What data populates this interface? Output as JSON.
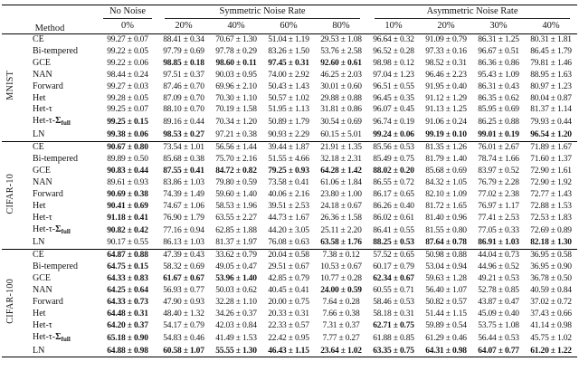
{
  "table": {
    "method_header": "Method",
    "groups": [
      {
        "label": "No Noise",
        "span": 1
      },
      {
        "label": "Symmetric Noise Rate",
        "span": 4
      },
      {
        "label": "Asymmetric Noise Rate",
        "span": 4
      }
    ],
    "rates": [
      "0%",
      "20%",
      "40%",
      "60%",
      "80%",
      "10%",
      "20%",
      "30%",
      "40%"
    ],
    "blocks": [
      {
        "dataset": "MNIST",
        "rows": [
          {
            "method": "CE",
            "values": [
              "99.27 ± 0.07",
              "88.41 ± 0.34",
              "70.67 ± 1.30",
              "51.04 ± 1.19",
              "29.53 ± 1.08",
              "96.64 ± 0.32",
              "91.09 ± 0.79",
              "86.31 ± 1.25",
              "80.31 ± 1.81"
            ],
            "bold": [
              0,
              0,
              0,
              0,
              0,
              0,
              0,
              0,
              0
            ]
          },
          {
            "method": "Bi-tempered",
            "values": [
              "99.22 ± 0.05",
              "97.79 ± 0.69",
              "97.78 ± 0.29",
              "83.26 ± 1.50",
              "53.76 ± 2.58",
              "96.52 ± 0.28",
              "97.33 ± 0.16",
              "96.67 ± 0.51",
              "86.45 ± 1.79"
            ],
            "bold": [
              0,
              0,
              0,
              0,
              0,
              0,
              0,
              0,
              0
            ]
          },
          {
            "method": "GCE",
            "values": [
              "99.22 ± 0.06",
              "98.85 ± 0.18",
              "98.60 ± 0.11",
              "97.45 ± 0.31",
              "92.60 ± 0.61",
              "98.98 ± 0.12",
              "98.52 ± 0.31",
              "86.36 ± 0.86",
              "79.81 ± 1.46"
            ],
            "bold": [
              0,
              1,
              1,
              1,
              1,
              0,
              0,
              0,
              0
            ]
          },
          {
            "method": "NAN",
            "values": [
              "98.44 ± 0.24",
              "97.51 ± 0.37",
              "90.03 ± 0.95",
              "74.00 ± 2.92",
              "46.25 ± 2.03",
              "97.04 ± 1.23",
              "96.46 ± 2.23",
              "95.43 ± 1.09",
              "88.95 ± 1.63"
            ],
            "bold": [
              0,
              0,
              0,
              0,
              0,
              0,
              0,
              0,
              0
            ]
          },
          {
            "method": "Forward",
            "values": [
              "99.27 ± 0.03",
              "87.46 ± 0.70",
              "69.96 ± 2.10",
              "50.43 ± 1.43",
              "30.01 ± 0.60",
              "96.51 ± 0.55",
              "91.95 ± 0.40",
              "86.31 ± 0.43",
              "80.97 ± 1.23"
            ],
            "bold": [
              0,
              0,
              0,
              0,
              0,
              0,
              0,
              0,
              0
            ]
          },
          {
            "method": "Het",
            "values": [
              "99.28 ± 0.05",
              "87.09 ± 0.70",
              "70.30 ± 1.10",
              "50.57 ± 1.02",
              "29.88 ± 0.88",
              "96.45 ± 0.35",
              "91.12 ± 1.29",
              "86.35 ± 0.62",
              "80.04 ± 0.87"
            ],
            "bold": [
              0,
              0,
              0,
              0,
              0,
              0,
              0,
              0,
              0
            ]
          },
          {
            "method": "Het-τ",
            "values": [
              "99.25 ± 0.07",
              "88.10 ± 0.70",
              "70.19 ± 1.58",
              "51.95 ± 1.13",
              "31.81 ± 0.86",
              "96.07 ± 0.45",
              "91.13 ± 1.25",
              "85.95 ± 0.69",
              "81.37 ± 1.14"
            ],
            "bold": [
              0,
              0,
              0,
              0,
              0,
              0,
              0,
              0,
              0
            ]
          },
          {
            "method": "Het-τ-Σ",
            "method_sub": "full",
            "values": [
              "99.25 ± 0.15",
              "89.16 ± 0.44",
              "70.34 ± 1.20",
              "50.89 ± 1.79",
              "30.54 ± 0.69",
              "96.74 ± 0.19",
              "91.06 ± 0.24",
              "86.25 ± 0.88",
              "79.93 ± 0.44"
            ],
            "bold": [
              1,
              0,
              0,
              0,
              0,
              0,
              0,
              0,
              0
            ]
          },
          {
            "method": "LN",
            "values": [
              "99.38 ± 0.06",
              "98.53 ± 0.27",
              "97.21 ± 0.38",
              "90.93 ± 2.29",
              "60.15 ± 5.01",
              "99.24 ± 0.06",
              "99.19 ± 0.10",
              "99.01 ± 0.19",
              "96.54 ± 1.20"
            ],
            "bold": [
              1,
              1,
              0,
              0,
              0,
              1,
              1,
              1,
              1
            ]
          }
        ]
      },
      {
        "dataset": "CIFAR-10",
        "rows": [
          {
            "method": "CE",
            "values": [
              "90.67 ± 0.80",
              "73.54 ± 1.01",
              "56.56 ± 1.44",
              "39.44 ± 1.87",
              "21.91 ± 1.35",
              "85.56 ± 0.53",
              "81.35 ± 1.26",
              "76.01 ± 2.67",
              "71.89 ± 1.67"
            ],
            "bold": [
              1,
              0,
              0,
              0,
              0,
              0,
              0,
              0,
              0
            ]
          },
          {
            "method": "Bi-tempered",
            "values": [
              "89.89 ± 0.50",
              "85.68 ± 0.38",
              "75.70 ± 2.16",
              "51.55 ± 4.66",
              "32.18 ± 2.31",
              "85.49 ± 0.75",
              "81.79 ± 1.40",
              "78.74 ± 1.66",
              "71.60 ± 1.37"
            ],
            "bold": [
              0,
              0,
              0,
              0,
              0,
              0,
              0,
              0,
              0
            ]
          },
          {
            "method": "GCE",
            "values": [
              "90.83 ± 0.44",
              "87.55 ± 0.41",
              "84.72 ± 0.82",
              "79.25 ± 0.93",
              "64.28 ± 1.42",
              "88.02 ± 0.20",
              "85.68 ± 0.69",
              "83.97 ± 0.52",
              "72.90 ± 1.61"
            ],
            "bold": [
              1,
              1,
              1,
              1,
              1,
              1,
              0,
              0,
              0
            ]
          },
          {
            "method": "NAN",
            "values": [
              "89.61 ± 0.93",
              "83.86 ± 1.03",
              "79.80 ± 0.59",
              "73.58 ± 0.41",
              "61.06 ± 1.84",
              "86.55 ± 0.72",
              "84.32 ± 1.05",
              "76.79 ± 2.28",
              "72.90 ± 1.92"
            ],
            "bold": [
              0,
              0,
              0,
              0,
              0,
              0,
              0,
              0,
              0
            ]
          },
          {
            "method": "Forward",
            "values": [
              "90.69 ± 0.38",
              "74.39 ± 1.49",
              "59.60 ± 1.40",
              "40.06 ± 2.16",
              "23.80 ± 1.00",
              "86.17 ± 0.65",
              "82.10 ± 1.09",
              "77.02 ± 2.38",
              "72.77 ± 1.43"
            ],
            "bold": [
              1,
              0,
              0,
              0,
              0,
              0,
              0,
              0,
              0
            ]
          },
          {
            "method": "Het",
            "values": [
              "90.41 ± 0.69",
              "74.67 ± 1.06",
              "58.53 ± 1.96",
              "39.51 ± 2.53",
              "24.18 ± 0.67",
              "86.26 ± 0.40",
              "81.72 ± 1.65",
              "76.97 ± 1.17",
              "72.88 ± 1.53"
            ],
            "bold": [
              1,
              0,
              0,
              0,
              0,
              0,
              0,
              0,
              0
            ]
          },
          {
            "method": "Het-τ",
            "values": [
              "91.18 ± 0.41",
              "76.90 ± 1.79",
              "63.55 ± 2.27",
              "44.73 ± 1.67",
              "26.36 ± 1.58",
              "86.02 ± 0.61",
              "81.40 ± 0.96",
              "77.41 ± 2.53",
              "72.53 ± 1.83"
            ],
            "bold": [
              1,
              0,
              0,
              0,
              0,
              0,
              0,
              0,
              0
            ]
          },
          {
            "method": "Het-τ-Σ",
            "method_sub": "full",
            "values": [
              "90.82 ± 0.42",
              "77.16 ± 0.94",
              "62.85 ± 1.88",
              "44.20 ± 3.05",
              "25.11 ± 2.20",
              "86.41 ± 0.55",
              "81.55 ± 0.80",
              "77.05 ± 0.33",
              "72.69 ± 0.89"
            ],
            "bold": [
              1,
              0,
              0,
              0,
              0,
              0,
              0,
              0,
              0
            ]
          },
          {
            "method": "LN",
            "values": [
              "90.17 ± 0.55",
              "86.13 ± 1.03",
              "81.37 ± 1.97",
              "76.08 ± 0.63",
              "63.58 ± 1.76",
              "88.25 ± 0.53",
              "87.64 ± 0.78",
              "86.91 ± 1.03",
              "82.18 ± 1.30"
            ],
            "bold": [
              0,
              0,
              0,
              0,
              1,
              1,
              1,
              1,
              1
            ]
          }
        ]
      },
      {
        "dataset": "CIFAR-100",
        "rows": [
          {
            "method": "CE",
            "values": [
              "64.87 ± 0.88",
              "47.39 ± 0.43",
              "33.62 ± 0.79",
              "20.04 ± 0.58",
              "7.38 ± 0.12",
              "57.52 ± 0.65",
              "50.98 ± 0.88",
              "44.04 ± 0.73",
              "36.95 ± 0.58"
            ],
            "bold": [
              1,
              0,
              0,
              0,
              0,
              0,
              0,
              0,
              0
            ]
          },
          {
            "method": "Bi-tempered",
            "values": [
              "64.75 ± 0.15",
              "58.32 ± 0.69",
              "49.05 ± 0.47",
              "29.51 ± 0.67",
              "10.53 ± 0.67",
              "60.17 ± 0.79",
              "53.04 ± 0.94",
              "44.96 ± 0.52",
              "36.95 ± 0.90"
            ],
            "bold": [
              1,
              0,
              0,
              0,
              0,
              0,
              0,
              0,
              0
            ]
          },
          {
            "method": "GCE",
            "values": [
              "64.33 ± 0.83",
              "61.67 ± 0.67",
              "53.96 ± 1.40",
              "42.85 ± 0.79",
              "10.77 ± 0.28",
              "62.34 ± 0.67",
              "59.63 ± 1.28",
              "49.21 ± 0.53",
              "36.78 ± 0.50"
            ],
            "bold": [
              1,
              1,
              1,
              0,
              0,
              1,
              0,
              0,
              0
            ]
          },
          {
            "method": "NAN",
            "values": [
              "64.25 ± 0.64",
              "56.93 ± 0.77",
              "50.03 ± 0.62",
              "40.45 ± 0.41",
              "24.00 ± 0.59",
              "60.55 ± 0.71",
              "56.40 ± 1.07",
              "52.78 ± 0.85",
              "40.59 ± 0.84"
            ],
            "bold": [
              1,
              0,
              0,
              0,
              1,
              0,
              0,
              0,
              0
            ]
          },
          {
            "method": "Forward",
            "values": [
              "64.33 ± 0.73",
              "47.90 ± 0.93",
              "32.28 ± 1.10",
              "20.00 ± 0.75",
              "7.64 ± 0.28",
              "58.46 ± 0.53",
              "50.82 ± 0.57",
              "43.87 ± 0.47",
              "37.02 ± 0.72"
            ],
            "bold": [
              1,
              0,
              0,
              0,
              0,
              0,
              0,
              0,
              0
            ]
          },
          {
            "method": "Het",
            "values": [
              "64.48 ± 0.31",
              "48.40 ± 1.32",
              "34.26 ± 0.37",
              "20.33 ± 0.31",
              "7.66 ± 0.38",
              "58.18 ± 0.31",
              "51.44 ± 1.15",
              "45.09 ± 0.40",
              "37.43 ± 0.66"
            ],
            "bold": [
              1,
              0,
              0,
              0,
              0,
              0,
              0,
              0,
              0
            ]
          },
          {
            "method": "Het-τ",
            "values": [
              "64.20 ± 0.37",
              "54.17 ± 0.79",
              "42.03 ± 0.84",
              "22.33 ± 0.57",
              "7.31 ± 0.37",
              "62.71 ± 0.75",
              "59.89 ± 0.54",
              "53.75 ± 1.08",
              "41.14 ± 0.98"
            ],
            "bold": [
              1,
              0,
              0,
              0,
              0,
              1,
              0,
              0,
              0
            ]
          },
          {
            "method": "Het-τ-Σ",
            "method_sub": "full",
            "values": [
              "65.18 ± 0.90",
              "54.83 ± 0.46",
              "41.49 ± 1.53",
              "22.42 ± 0.95",
              "7.77 ± 0.27",
              "61.88 ± 0.85",
              "61.29 ± 0.46",
              "56.44 ± 0.53",
              "45.75 ± 1.02"
            ],
            "bold": [
              1,
              0,
              0,
              0,
              0,
              0,
              0,
              0,
              0
            ]
          },
          {
            "method": "LN",
            "values": [
              "64.88 ± 0.98",
              "60.58 ± 1.07",
              "55.55 ± 1.30",
              "46.43 ± 1.15",
              "23.64 ± 1.02",
              "63.35 ± 0.75",
              "64.31 ± 0.98",
              "64.07 ± 0.77",
              "61.20 ± 1.22"
            ],
            "bold": [
              1,
              1,
              1,
              1,
              1,
              1,
              1,
              1,
              1
            ]
          }
        ]
      }
    ]
  }
}
